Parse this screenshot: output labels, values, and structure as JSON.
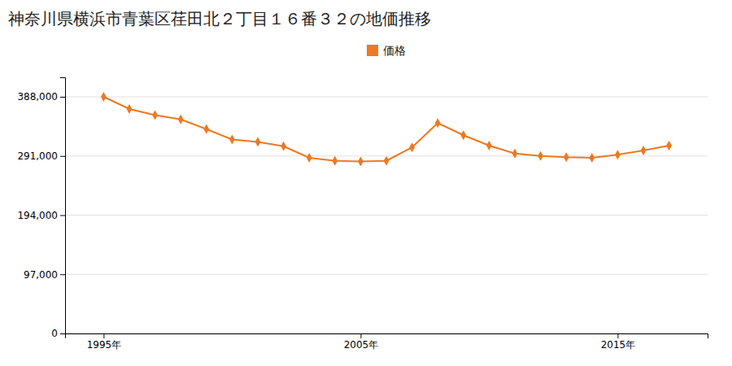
{
  "chart_data": {
    "type": "line",
    "title": "神奈川県横浜市青葉区荏田北２丁目１６番３２の地価推移",
    "x": [
      1995,
      1996,
      1997,
      1998,
      1999,
      2000,
      2001,
      2002,
      2003,
      2004,
      2005,
      2006,
      2007,
      2008,
      2009,
      2010,
      2011,
      2012,
      2013,
      2014,
      2015,
      2016,
      2017
    ],
    "series": [
      {
        "name": "価格",
        "color": "#f07820",
        "marker": "diamond",
        "values": [
          388000,
          368000,
          358000,
          351000,
          335000,
          318000,
          314000,
          307000,
          288000,
          283000,
          282000,
          283000,
          305000,
          345000,
          325000,
          308000,
          295000,
          291000,
          289000,
          288000,
          293000,
          300000,
          308000
        ]
      }
    ],
    "xlim": [
      1993.5,
      2018.5
    ],
    "xticks": [
      {
        "value": 1995,
        "label": "1995年"
      },
      {
        "value": 2005,
        "label": "2005年"
      },
      {
        "value": 2015,
        "label": "2015年"
      }
    ],
    "ylim": [
      0,
      420000
    ],
    "yticks": [
      0,
      {
        "value": 97000,
        "label": "97,000"
      },
      {
        "value": 194000,
        "label": "194,000"
      },
      {
        "value": 291000,
        "label": "291,000"
      },
      {
        "value": 388000,
        "label": "388,000"
      }
    ],
    "grid": true,
    "legend": "top"
  }
}
